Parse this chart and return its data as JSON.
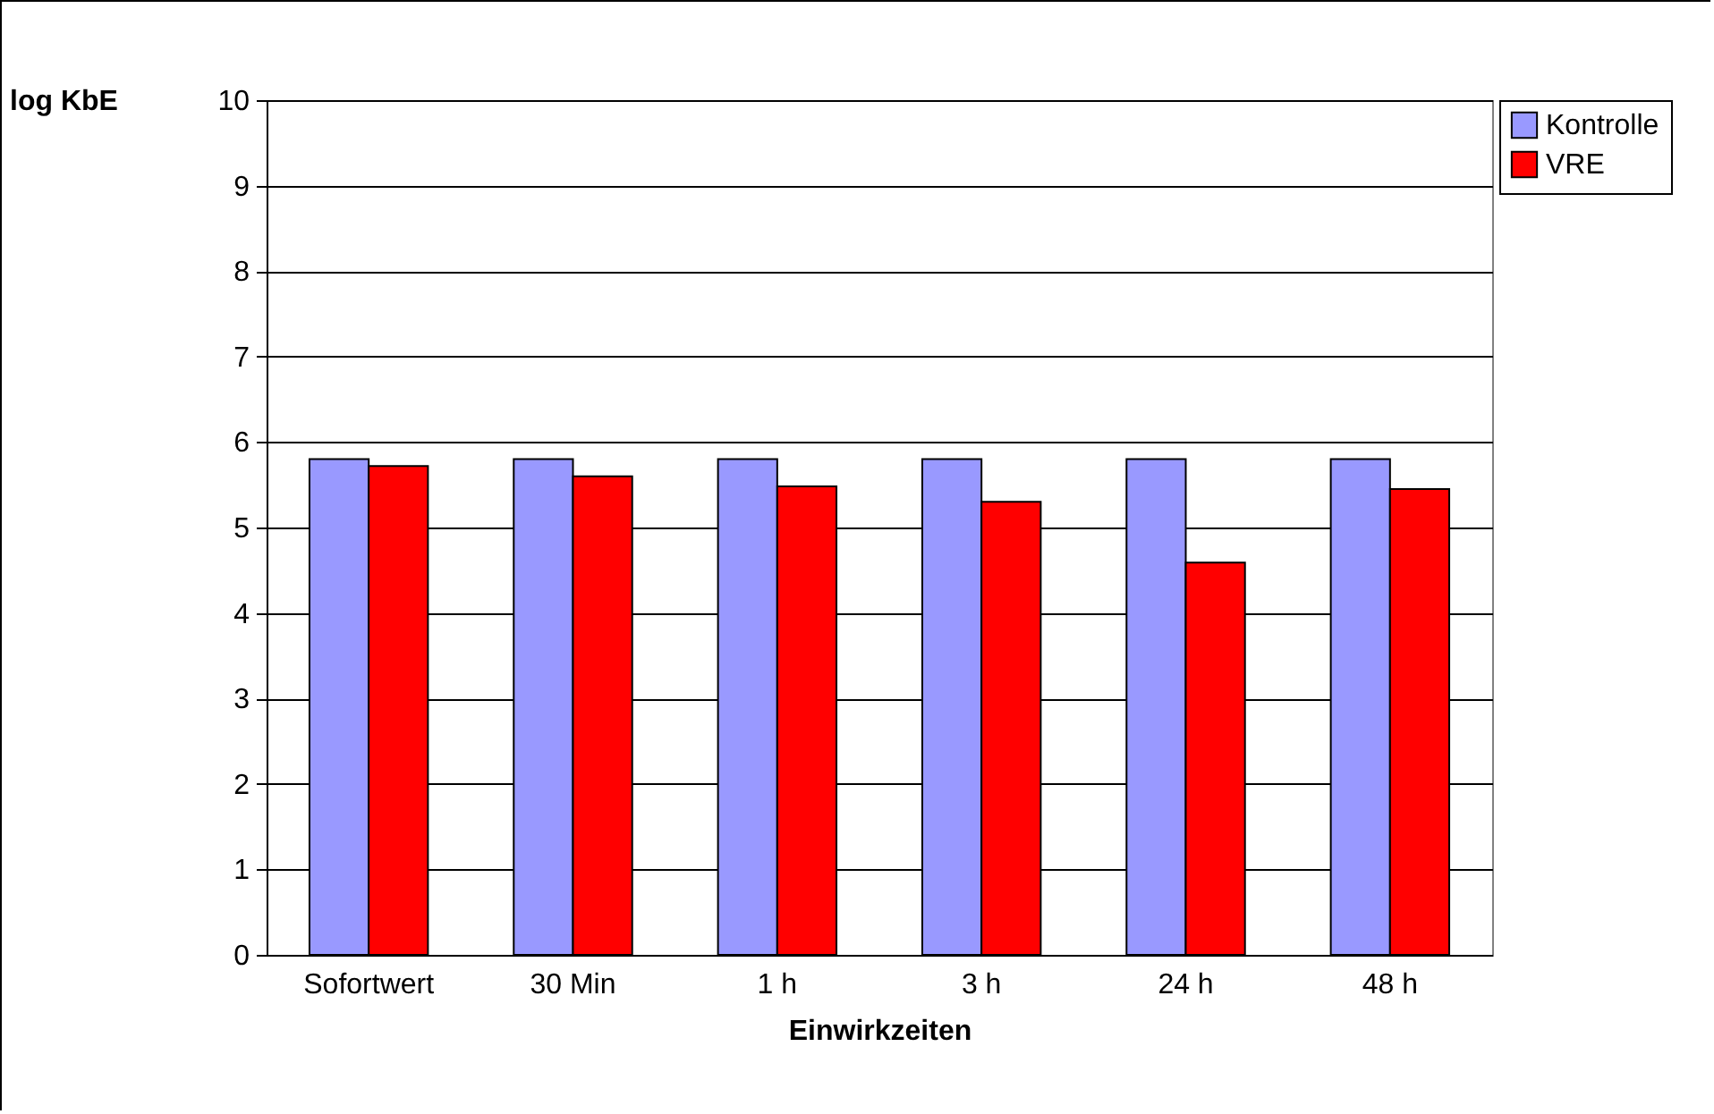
{
  "chart_data": {
    "type": "bar",
    "xlabel": "Einwirkzeiten",
    "ylabel": "log KbE",
    "categories": [
      "Sofortwert",
      "30 Min",
      "1 h",
      "3 h",
      "24 h",
      "48 h"
    ],
    "series": [
      {
        "name": "Kontrolle",
        "color": "#9999ff",
        "values": [
          5.8,
          5.8,
          5.8,
          5.8,
          5.8,
          5.8
        ]
      },
      {
        "name": "VRE",
        "color": "#ff0000",
        "values": [
          5.72,
          5.6,
          5.48,
          5.3,
          4.59,
          5.45
        ]
      }
    ],
    "ylim": [
      0,
      10
    ],
    "yticks": [
      0,
      1,
      2,
      3,
      4,
      5,
      6,
      7,
      8,
      9,
      10
    ],
    "grid": "y",
    "legend": "right"
  }
}
